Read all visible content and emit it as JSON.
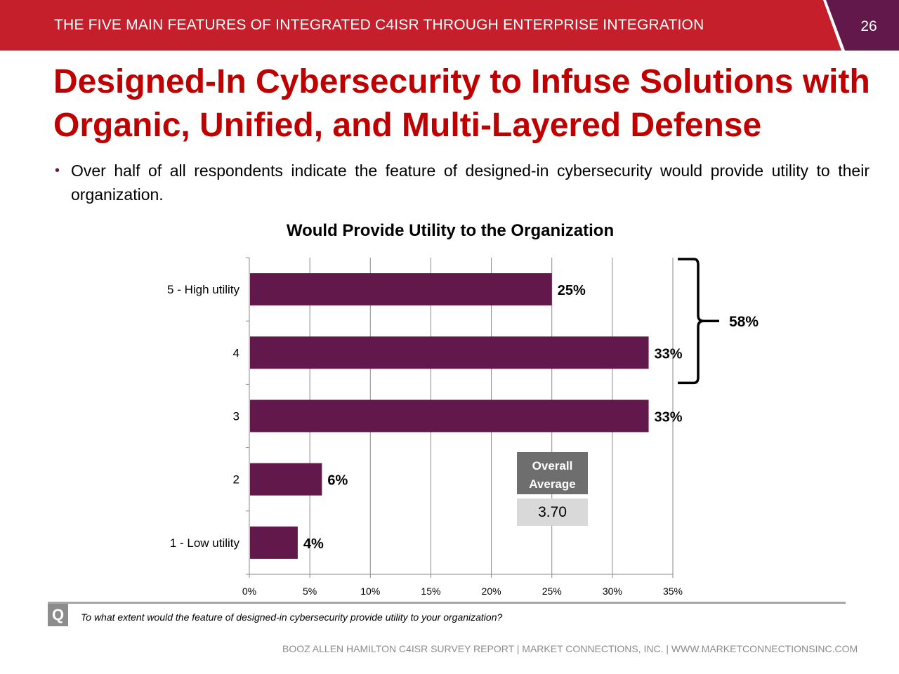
{
  "header": {
    "title": "THE FIVE MAIN FEATURES OF INTEGRATED C4ISR THROUGH ENTERPRISE INTEGRATION",
    "page_number": "26",
    "red_color": "#c41f2a",
    "purple_color": "#62184a"
  },
  "slide": {
    "title": "Designed-In Cybersecurity to Infuse Solutions with Organic, Unified, and Multi-Layered Defense",
    "bullet": "Over half of all respondents indicate the feature of designed-in cybersecurity would provide utility to their organization."
  },
  "chart_data": {
    "type": "bar",
    "orientation": "horizontal",
    "title": "Would Provide Utility to the Organization",
    "categories": [
      "5 - High utility",
      "4",
      "3",
      "2",
      "1 - Low utility"
    ],
    "values": [
      25,
      33,
      33,
      6,
      4
    ],
    "value_labels": [
      "25%",
      "33%",
      "33%",
      "6%",
      "4%"
    ],
    "xticks": [
      "0%",
      "5%",
      "10%",
      "15%",
      "20%",
      "25%",
      "30%",
      "35%"
    ],
    "xlim": [
      0,
      35
    ],
    "grid": "vertical",
    "bar_color": "#62184a",
    "xlabel": "",
    "ylabel": "",
    "bracket": {
      "label": "58%",
      "covers": [
        "5 - High utility",
        "4"
      ]
    },
    "average_box": {
      "label": "Overall Average",
      "value": "3.70"
    }
  },
  "question": {
    "icon": "Q",
    "text": "To what extent would the feature of designed-in cybersecurity provide utility to your organization?"
  },
  "footer": {
    "text": "BOOZ ALLEN HAMILTON C4ISR SURVEY REPORT   |   MARKET CONNECTIONS, INC.  |  WWW.MARKETCONNECTIONSINC.COM"
  }
}
